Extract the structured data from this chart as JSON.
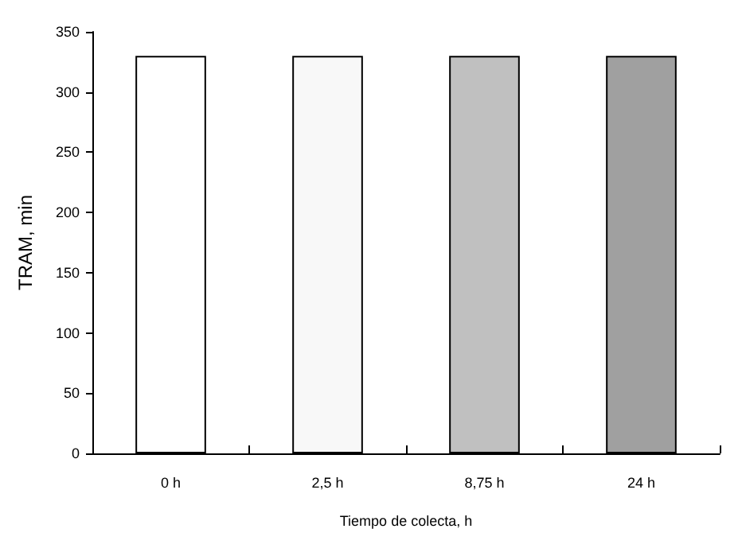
{
  "chart_data": {
    "type": "bar",
    "xlabel": "Tiempo de colecta, h",
    "ylabel": "TRAM, min",
    "categories": [
      "0 h",
      "2,5 h",
      "8,75 h",
      "24 h"
    ],
    "values": [
      330,
      330,
      330,
      330
    ],
    "colors": [
      "#ffffff",
      "#f8f8f8",
      "#c0c0c0",
      "#a0a0a0"
    ],
    "ylim": [
      0,
      350
    ],
    "yticks": [
      0,
      50,
      100,
      150,
      200,
      250,
      300,
      350
    ],
    "grid": false
  }
}
